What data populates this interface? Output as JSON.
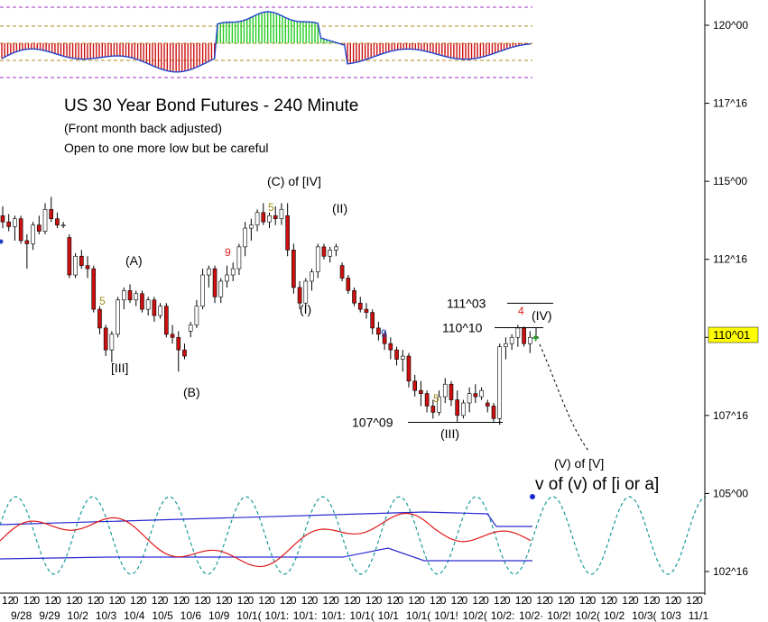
{
  "chart_data": {
    "type": "candlestick",
    "title": "US 30 Year Bond Futures - 240 Minute",
    "subtitle": "(Front month back adjusted)",
    "note": "Open to one more low but be careful",
    "y_axis": {
      "labels": [
        {
          "text": "120^00",
          "value": 120.0
        },
        {
          "text": "117^16",
          "value": 117.5
        },
        {
          "text": "115^00",
          "value": 115.0
        },
        {
          "text": "112^16",
          "value": 112.5
        },
        {
          "text": "110^00",
          "value": 110.0
        },
        {
          "text": "107^16",
          "value": 107.5
        },
        {
          "text": "105^00",
          "value": 105.0
        },
        {
          "text": "102^16",
          "value": 102.5
        }
      ],
      "last_price": "110^01",
      "range": [
        101.75,
        121.0
      ]
    },
    "x_axis": {
      "hours": [
        "12",
        "0",
        "12",
        "0",
        "12",
        "0",
        "12",
        "0",
        "12",
        "0",
        "12",
        "0",
        "12",
        "0",
        "12",
        "0",
        "12",
        "0",
        "12",
        "0",
        "12",
        "0",
        "12",
        "0",
        "12",
        "0",
        "12",
        "0",
        "12",
        "0",
        "12",
        "0",
        "12",
        "0",
        "12",
        "0",
        "12",
        "0",
        "12",
        "0",
        "12",
        "0",
        "12",
        "0",
        "12",
        "0",
        "12",
        "0",
        "12",
        "0",
        "12",
        "0",
        "12",
        "0",
        "12",
        "0",
        "12",
        "0",
        "12",
        "0",
        "12",
        "0",
        "12",
        "0",
        "12",
        "0"
      ],
      "dates": [
        "9/28",
        "9/29",
        "10/2",
        "10/3",
        "10/4",
        "10/5",
        "10/6",
        "10/9",
        "10/10",
        "10/11",
        "10/12",
        "10/13",
        "10/16",
        "10/17",
        "10/18",
        "10/19",
        "10/20",
        "10/23",
        "10/24",
        "10/25",
        "10/26",
        "10/27",
        "10/30",
        "10/31",
        "11/1"
      ],
      "date_labels": [
        "9/28",
        "9/29",
        "10/2",
        "10/3",
        "10/4",
        "10/5",
        "10/6",
        "10/9",
        "10/1(",
        "10/1:",
        "10/1:",
        "10/1:",
        "10/1(",
        "10/1",
        "10/1(",
        "10/1!",
        "10/2(",
        "10/2:",
        "10/2·",
        "10/2!",
        "10/2(",
        "10/2",
        "10/3(",
        "10/3",
        "11/1"
      ]
    },
    "candles": [
      {
        "o": 113.9,
        "h": 114.2,
        "l": 113.5,
        "c": 113.7
      },
      {
        "o": 113.7,
        "h": 113.95,
        "l": 113.4,
        "c": 113.55
      },
      {
        "o": 113.55,
        "h": 113.9,
        "l": 113.1,
        "c": 113.8
      },
      {
        "o": 113.8,
        "h": 113.9,
        "l": 113.0,
        "c": 113.1
      },
      {
        "o": 113.1,
        "h": 113.3,
        "l": 112.2,
        "c": 113.0
      },
      {
        "o": 113.0,
        "h": 113.7,
        "l": 112.8,
        "c": 113.6
      },
      {
        "o": 113.6,
        "h": 113.9,
        "l": 113.3,
        "c": 113.4
      },
      {
        "o": 113.4,
        "h": 114.3,
        "l": 113.3,
        "c": 114.1
      },
      {
        "o": 114.1,
        "h": 114.5,
        "l": 113.7,
        "c": 113.8
      },
      {
        "o": 113.8,
        "h": 114.0,
        "l": 113.5,
        "c": 113.6
      },
      {
        "o": 113.6,
        "h": 113.7,
        "l": 113.5,
        "c": 113.6
      },
      {
        "o": 113.2,
        "h": 113.3,
        "l": 111.9,
        "c": 112.0
      },
      {
        "o": 112.0,
        "h": 112.7,
        "l": 111.9,
        "c": 112.6
      },
      {
        "o": 112.6,
        "h": 112.8,
        "l": 112.2,
        "c": 112.3
      },
      {
        "o": 112.3,
        "h": 112.6,
        "l": 111.9,
        "c": 112.2
      },
      {
        "o": 112.2,
        "h": 112.3,
        "l": 110.8,
        "c": 110.9
      },
      {
        "o": 110.9,
        "h": 111.0,
        "l": 110.1,
        "c": 110.3
      },
      {
        "o": 110.3,
        "h": 110.4,
        "l": 109.4,
        "c": 109.6
      },
      {
        "o": 109.6,
        "h": 110.2,
        "l": 109.2,
        "c": 110.1
      },
      {
        "o": 110.1,
        "h": 111.3,
        "l": 110.0,
        "c": 111.2
      },
      {
        "o": 111.2,
        "h": 111.6,
        "l": 110.9,
        "c": 111.5
      },
      {
        "o": 111.5,
        "h": 111.7,
        "l": 111.1,
        "c": 111.2
      },
      {
        "o": 111.2,
        "h": 111.5,
        "l": 111.0,
        "c": 111.4
      },
      {
        "o": 111.4,
        "h": 111.5,
        "l": 110.8,
        "c": 110.9
      },
      {
        "o": 110.9,
        "h": 111.3,
        "l": 110.7,
        "c": 111.2
      },
      {
        "o": 111.2,
        "h": 111.3,
        "l": 110.5,
        "c": 110.7
      },
      {
        "o": 110.7,
        "h": 111.1,
        "l": 110.6,
        "c": 111.0
      },
      {
        "o": 111.0,
        "h": 111.1,
        "l": 110.0,
        "c": 110.1
      },
      {
        "o": 110.1,
        "h": 110.4,
        "l": 109.8,
        "c": 110.0
      },
      {
        "o": 110.0,
        "h": 110.2,
        "l": 108.9,
        "c": 109.6
      },
      {
        "o": 109.6,
        "h": 109.8,
        "l": 109.3,
        "c": 109.4
      },
      {
        "o": 110.2,
        "h": 110.5,
        "l": 110.0,
        "c": 110.4
      },
      {
        "o": 110.4,
        "h": 111.2,
        "l": 110.3,
        "c": 111.0
      },
      {
        "o": 111.0,
        "h": 112.2,
        "l": 110.9,
        "c": 112.0
      },
      {
        "o": 112.0,
        "h": 112.3,
        "l": 111.6,
        "c": 112.2
      },
      {
        "o": 112.2,
        "h": 112.3,
        "l": 111.1,
        "c": 111.3
      },
      {
        "o": 111.3,
        "h": 111.9,
        "l": 111.1,
        "c": 111.8
      },
      {
        "o": 111.8,
        "h": 112.3,
        "l": 111.6,
        "c": 112.0
      },
      {
        "o": 112.0,
        "h": 112.4,
        "l": 111.8,
        "c": 112.2
      },
      {
        "o": 112.2,
        "h": 113.0,
        "l": 112.0,
        "c": 112.9
      },
      {
        "o": 112.9,
        "h": 113.7,
        "l": 112.6,
        "c": 113.5
      },
      {
        "o": 113.5,
        "h": 113.8,
        "l": 113.1,
        "c": 113.6
      },
      {
        "o": 113.6,
        "h": 114.1,
        "l": 113.4,
        "c": 114.0
      },
      {
        "o": 114.0,
        "h": 114.3,
        "l": 113.6,
        "c": 113.7
      },
      {
        "o": 113.7,
        "h": 114.0,
        "l": 113.5,
        "c": 113.9
      },
      {
        "o": 113.9,
        "h": 114.2,
        "l": 113.6,
        "c": 113.8
      },
      {
        "o": 113.8,
        "h": 114.3,
        "l": 113.6,
        "c": 114.1
      },
      {
        "o": 113.9,
        "h": 114.3,
        "l": 112.6,
        "c": 112.8
      },
      {
        "o": 112.8,
        "h": 113.0,
        "l": 111.4,
        "c": 111.6
      },
      {
        "o": 111.6,
        "h": 111.8,
        "l": 110.9,
        "c": 111.1
      },
      {
        "o": 111.1,
        "h": 111.9,
        "l": 111.0,
        "c": 111.8
      },
      {
        "o": 111.8,
        "h": 112.2,
        "l": 111.5,
        "c": 112.1
      },
      {
        "o": 112.1,
        "h": 113.0,
        "l": 111.9,
        "c": 112.9
      },
      {
        "o": 112.9,
        "h": 113.0,
        "l": 112.5,
        "c": 112.6
      },
      {
        "o": 112.6,
        "h": 112.9,
        "l": 112.4,
        "c": 112.8
      },
      {
        "o": 112.8,
        "h": 113.0,
        "l": 112.6,
        "c": 112.9
      },
      {
        "o": 112.3,
        "h": 112.4,
        "l": 111.8,
        "c": 111.9
      },
      {
        "o": 111.9,
        "h": 112.0,
        "l": 111.4,
        "c": 111.5
      },
      {
        "o": 111.5,
        "h": 111.6,
        "l": 111.0,
        "c": 111.1
      },
      {
        "o": 111.1,
        "h": 111.3,
        "l": 110.8,
        "c": 110.9
      },
      {
        "o": 110.9,
        "h": 111.1,
        "l": 110.6,
        "c": 110.8
      },
      {
        "o": 110.8,
        "h": 110.9,
        "l": 110.1,
        "c": 110.3
      },
      {
        "o": 110.3,
        "h": 110.5,
        "l": 109.9,
        "c": 110.1
      },
      {
        "o": 110.1,
        "h": 110.2,
        "l": 109.6,
        "c": 109.8
      },
      {
        "o": 109.8,
        "h": 110.0,
        "l": 109.3,
        "c": 109.6
      },
      {
        "o": 109.6,
        "h": 109.7,
        "l": 109.1,
        "c": 109.3
      },
      {
        "o": 109.3,
        "h": 109.6,
        "l": 108.9,
        "c": 109.4
      },
      {
        "o": 109.4,
        "h": 109.5,
        "l": 108.4,
        "c": 108.6
      },
      {
        "o": 108.6,
        "h": 108.8,
        "l": 108.1,
        "c": 108.3
      },
      {
        "o": 108.3,
        "h": 108.6,
        "l": 107.8,
        "c": 108.2
      },
      {
        "o": 108.2,
        "h": 108.3,
        "l": 107.6,
        "c": 107.8
      },
      {
        "o": 107.8,
        "h": 108.0,
        "l": 107.4,
        "c": 107.6
      },
      {
        "o": 107.6,
        "h": 108.3,
        "l": 107.5,
        "c": 108.1
      },
      {
        "o": 108.1,
        "h": 108.7,
        "l": 107.9,
        "c": 108.5
      },
      {
        "o": 108.5,
        "h": 108.6,
        "l": 107.8,
        "c": 108.0
      },
      {
        "o": 108.0,
        "h": 108.3,
        "l": 107.3,
        "c": 107.5
      },
      {
        "o": 107.5,
        "h": 108.0,
        "l": 107.4,
        "c": 107.9
      },
      {
        "o": 107.9,
        "h": 108.4,
        "l": 107.6,
        "c": 108.2
      },
      {
        "o": 108.2,
        "h": 108.5,
        "l": 107.9,
        "c": 108.1
      },
      {
        "o": 108.1,
        "h": 108.4,
        "l": 108.0,
        "c": 108.3
      },
      {
        "o": 107.9,
        "h": 108.0,
        "l": 107.6,
        "c": 107.8
      },
      {
        "o": 107.8,
        "h": 107.9,
        "l": 107.3,
        "c": 107.4
      },
      {
        "o": 107.4,
        "h": 109.8,
        "l": 107.2,
        "c": 109.7
      },
      {
        "o": 109.7,
        "h": 110.0,
        "l": 109.3,
        "c": 109.8
      },
      {
        "o": 109.8,
        "h": 110.1,
        "l": 109.6,
        "c": 110.0
      },
      {
        "o": 110.0,
        "h": 110.4,
        "l": 109.7,
        "c": 110.3
      },
      {
        "o": 110.3,
        "h": 110.35,
        "l": 109.7,
        "c": 109.8
      },
      {
        "o": 109.8,
        "h": 110.2,
        "l": 109.5,
        "c": 110.0
      },
      {
        "o": 110.0,
        "h": 110.3,
        "l": 109.9,
        "c": 110.03
      }
    ],
    "levels": [
      {
        "label": "111^03",
        "value": 111.094
      },
      {
        "label": "110^10",
        "value": 110.3125
      },
      {
        "label": "107^09",
        "value": 107.28
      }
    ],
    "wave_labels": [
      {
        "text": "(C) of [IV]",
        "color": "#000000"
      },
      {
        "text": "(II)",
        "color": "#000000"
      },
      {
        "text": "(A)",
        "color": "#000000"
      },
      {
        "text": "(I)",
        "color": "#000000"
      },
      {
        "text": "[III]",
        "color": "#000000"
      },
      {
        "text": "(B)",
        "color": "#000000"
      },
      {
        "text": "(III)",
        "color": "#000000"
      },
      {
        "text": "(IV)",
        "color": "#000000"
      },
      {
        "text": "(V) of [V]",
        "color": "#000000"
      },
      {
        "text": "v of (v) of [i or a]",
        "color": "#000000"
      }
    ],
    "count_labels": [
      {
        "text": "5",
        "color": "#9a8a1a"
      },
      {
        "text": "9",
        "color": "#e0201a"
      },
      {
        "text": "5",
        "color": "#9a8a1a"
      },
      {
        "text": "9",
        "color": "#2040c0"
      },
      {
        "text": "5",
        "color": "#9a8a1a"
      },
      {
        "text": "4",
        "color": "#e0201a"
      }
    ],
    "colors": {
      "up_candle": "#ffffff",
      "down_candle": "#cc1010",
      "wick": "#000000",
      "last_price_bg": "#ffff00",
      "oscillator_positive": "#22cc22",
      "oscillator_negative": "#cc1010",
      "oscillator_line": "#2244cc",
      "cycle_line": "#1a9a9a",
      "band_line": "#2a2ad0",
      "momentum_line": "#e01818",
      "dashed_guides": "#a030c0"
    },
    "grid": false
  }
}
